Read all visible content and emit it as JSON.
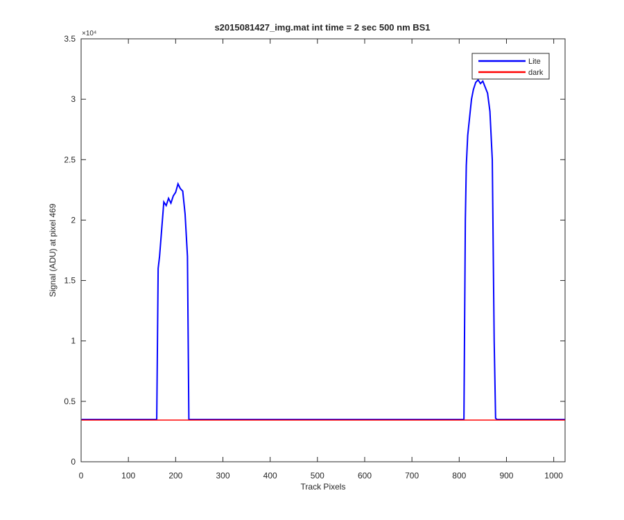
{
  "chart_data": {
    "type": "line",
    "title": "s2015081427_img.mat int time = 2 sec  500 nm BS1",
    "x_label": "Track Pixels",
    "y_label": "Signal (ADU) at pixel 469",
    "y_exponent_label": "×10⁴",
    "x": [
      1,
      160,
      163,
      166,
      170,
      175,
      180,
      185,
      190,
      195,
      200,
      205,
      210,
      215,
      220,
      225,
      228,
      230,
      810,
      813,
      815,
      818,
      822,
      826,
      830,
      835,
      840,
      845,
      850,
      855,
      860,
      865,
      870,
      874,
      877,
      880,
      1024
    ],
    "series": [
      {
        "name": "Lite",
        "color": "#0000ff",
        "values": [
          3500,
          3500,
          16000,
          17000,
          19000,
          21500,
          21200,
          21800,
          21400,
          22000,
          22300,
          23000,
          22600,
          22400,
          20500,
          17000,
          3500,
          3500,
          3500,
          20000,
          24500,
          27000,
          28500,
          30000,
          30800,
          31400,
          31600,
          31300,
          31500,
          31000,
          30500,
          29000,
          25000,
          10000,
          3600,
          3500,
          3500
        ]
      },
      {
        "name": "dark",
        "color": "#ff0000",
        "values": [
          3450,
          3450,
          3450,
          3450,
          3450,
          3450,
          3450,
          3450,
          3450,
          3450,
          3450,
          3450,
          3450,
          3450,
          3450,
          3450,
          3450,
          3450,
          3450,
          3450,
          3450,
          3450,
          3450,
          3450,
          3450,
          3450,
          3450,
          3450,
          3450,
          3450,
          3450,
          3450,
          3450,
          3450,
          3450,
          3450,
          3450
        ]
      }
    ],
    "xlim": [
      0,
      1024
    ],
    "xticks": [
      0,
      100,
      200,
      300,
      400,
      500,
      600,
      700,
      800,
      900,
      1000
    ],
    "ylim": [
      0,
      35000
    ],
    "yticks": [
      0,
      {
        "value": 5000,
        "label": "0.5"
      },
      {
        "value": 10000,
        "label": "1"
      },
      {
        "value": 15000,
        "label": "1.5"
      },
      {
        "value": 20000,
        "label": "2"
      },
      {
        "value": 25000,
        "label": "2.5"
      },
      {
        "value": 30000,
        "label": "3"
      },
      {
        "value": 35000,
        "label": "3.5"
      }
    ],
    "legend": "upper right",
    "grid": false
  }
}
